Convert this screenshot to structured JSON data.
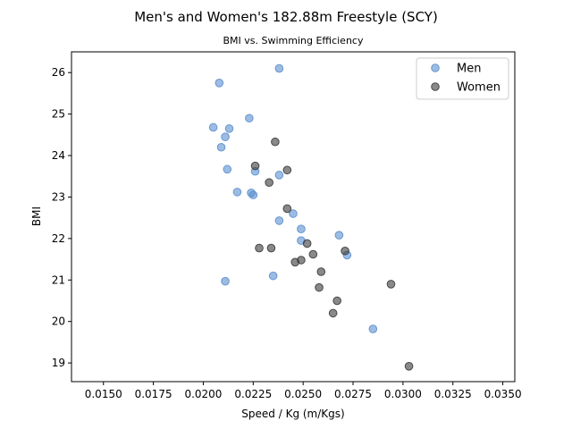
{
  "chart_data": {
    "type": "scatter",
    "title": "Men's and Women's 182.88m Freestyle (SCY)",
    "subtitle": "BMI vs. Swimming Efficiency",
    "xlabel": "Speed / Kg (m/Kgs)",
    "ylabel": "BMI",
    "xlim": [
      0.0134,
      0.0356
    ],
    "ylim": [
      18.55,
      26.5
    ],
    "xticks": [
      0.015,
      0.0175,
      0.02,
      0.0225,
      0.025,
      0.0275,
      0.03,
      0.0325,
      0.035
    ],
    "xtick_labels": [
      "0.0150",
      "0.0175",
      "0.0200",
      "0.0225",
      "0.0250",
      "0.0275",
      "0.0300",
      "0.0325",
      "0.0350"
    ],
    "yticks": [
      19,
      20,
      21,
      22,
      23,
      24,
      25,
      26
    ],
    "ytick_labels": [
      "19",
      "20",
      "21",
      "22",
      "23",
      "24",
      "25",
      "26"
    ],
    "grid": false,
    "legend": "top-right",
    "series": [
      {
        "name": "Men",
        "color": "#5b8fcf",
        "points": [
          [
            0.0238,
            26.1
          ],
          [
            0.0208,
            25.75
          ],
          [
            0.0223,
            24.9
          ],
          [
            0.0205,
            24.68
          ],
          [
            0.0213,
            24.65
          ],
          [
            0.0211,
            24.45
          ],
          [
            0.0209,
            24.2
          ],
          [
            0.0212,
            23.67
          ],
          [
            0.0226,
            23.62
          ],
          [
            0.0238,
            23.53
          ],
          [
            0.0217,
            23.12
          ],
          [
            0.0224,
            23.1
          ],
          [
            0.0225,
            23.05
          ],
          [
            0.0245,
            22.6
          ],
          [
            0.0238,
            22.43
          ],
          [
            0.0249,
            22.23
          ],
          [
            0.0268,
            22.08
          ],
          [
            0.0249,
            21.95
          ],
          [
            0.0272,
            21.6
          ],
          [
            0.0235,
            21.1
          ],
          [
            0.0211,
            20.97
          ],
          [
            0.0285,
            19.82
          ]
        ]
      },
      {
        "name": "Women",
        "color": "#3a3a3a",
        "points": [
          [
            0.0236,
            24.33
          ],
          [
            0.0226,
            23.75
          ],
          [
            0.0242,
            23.65
          ],
          [
            0.0233,
            23.35
          ],
          [
            0.0242,
            22.72
          ],
          [
            0.0252,
            21.88
          ],
          [
            0.0228,
            21.77
          ],
          [
            0.0234,
            21.77
          ],
          [
            0.0271,
            21.7
          ],
          [
            0.0255,
            21.62
          ],
          [
            0.0249,
            21.48
          ],
          [
            0.0246,
            21.43
          ],
          [
            0.0259,
            21.2
          ],
          [
            0.0294,
            20.9
          ],
          [
            0.0258,
            20.82
          ],
          [
            0.0267,
            20.5
          ],
          [
            0.0265,
            20.2
          ],
          [
            0.0303,
            18.92
          ]
        ]
      }
    ]
  }
}
